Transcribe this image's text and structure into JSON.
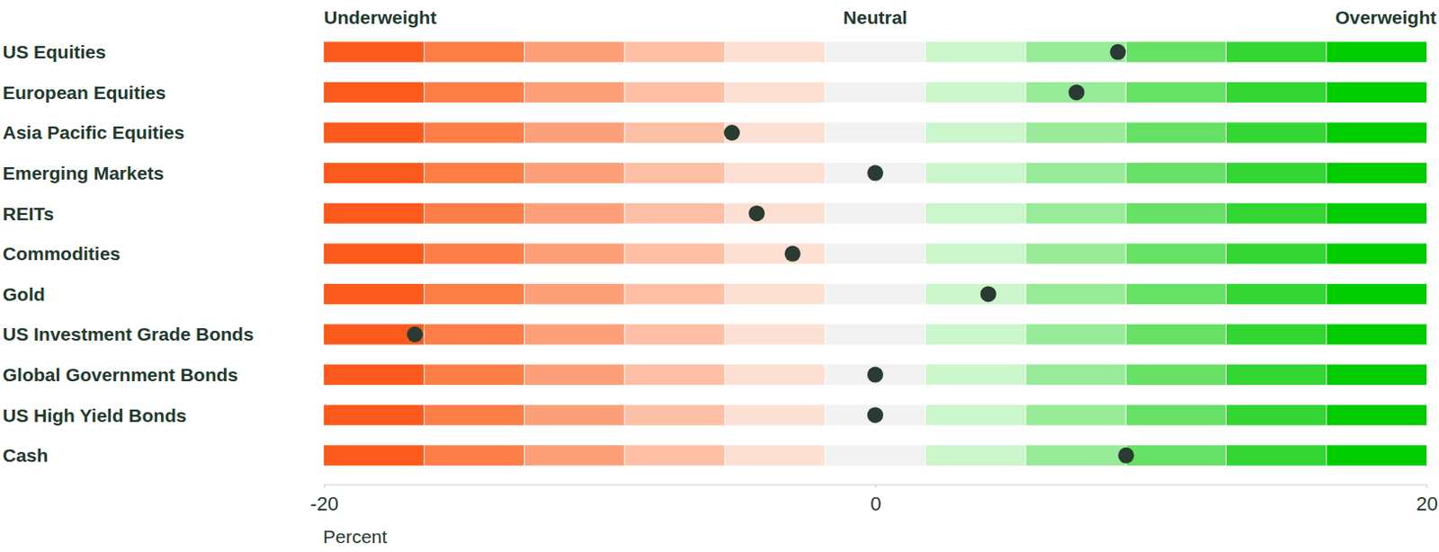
{
  "chart_data": {
    "type": "dot",
    "orientation": "horizontal",
    "categories": [
      "US Equities",
      "European Equities",
      "Asia Pacific Equities",
      "Emerging Markets",
      "REITs",
      "Commodities",
      "Gold",
      "US Investment Grade Bonds",
      "Global Government Bonds",
      "US High Yield Bonds",
      "Cash"
    ],
    "values": [
      8.8,
      7.3,
      -5.2,
      0,
      -4.3,
      -3.0,
      4.1,
      -16.7,
      0,
      0,
      9.1
    ],
    "xlim": [
      -20,
      20
    ],
    "xticks": [
      -20,
      0,
      20
    ],
    "xlabel": "Percent",
    "annotations": [
      "Underweight",
      "Neutral",
      "Overweight"
    ],
    "color": "#2a3b33"
  }
}
